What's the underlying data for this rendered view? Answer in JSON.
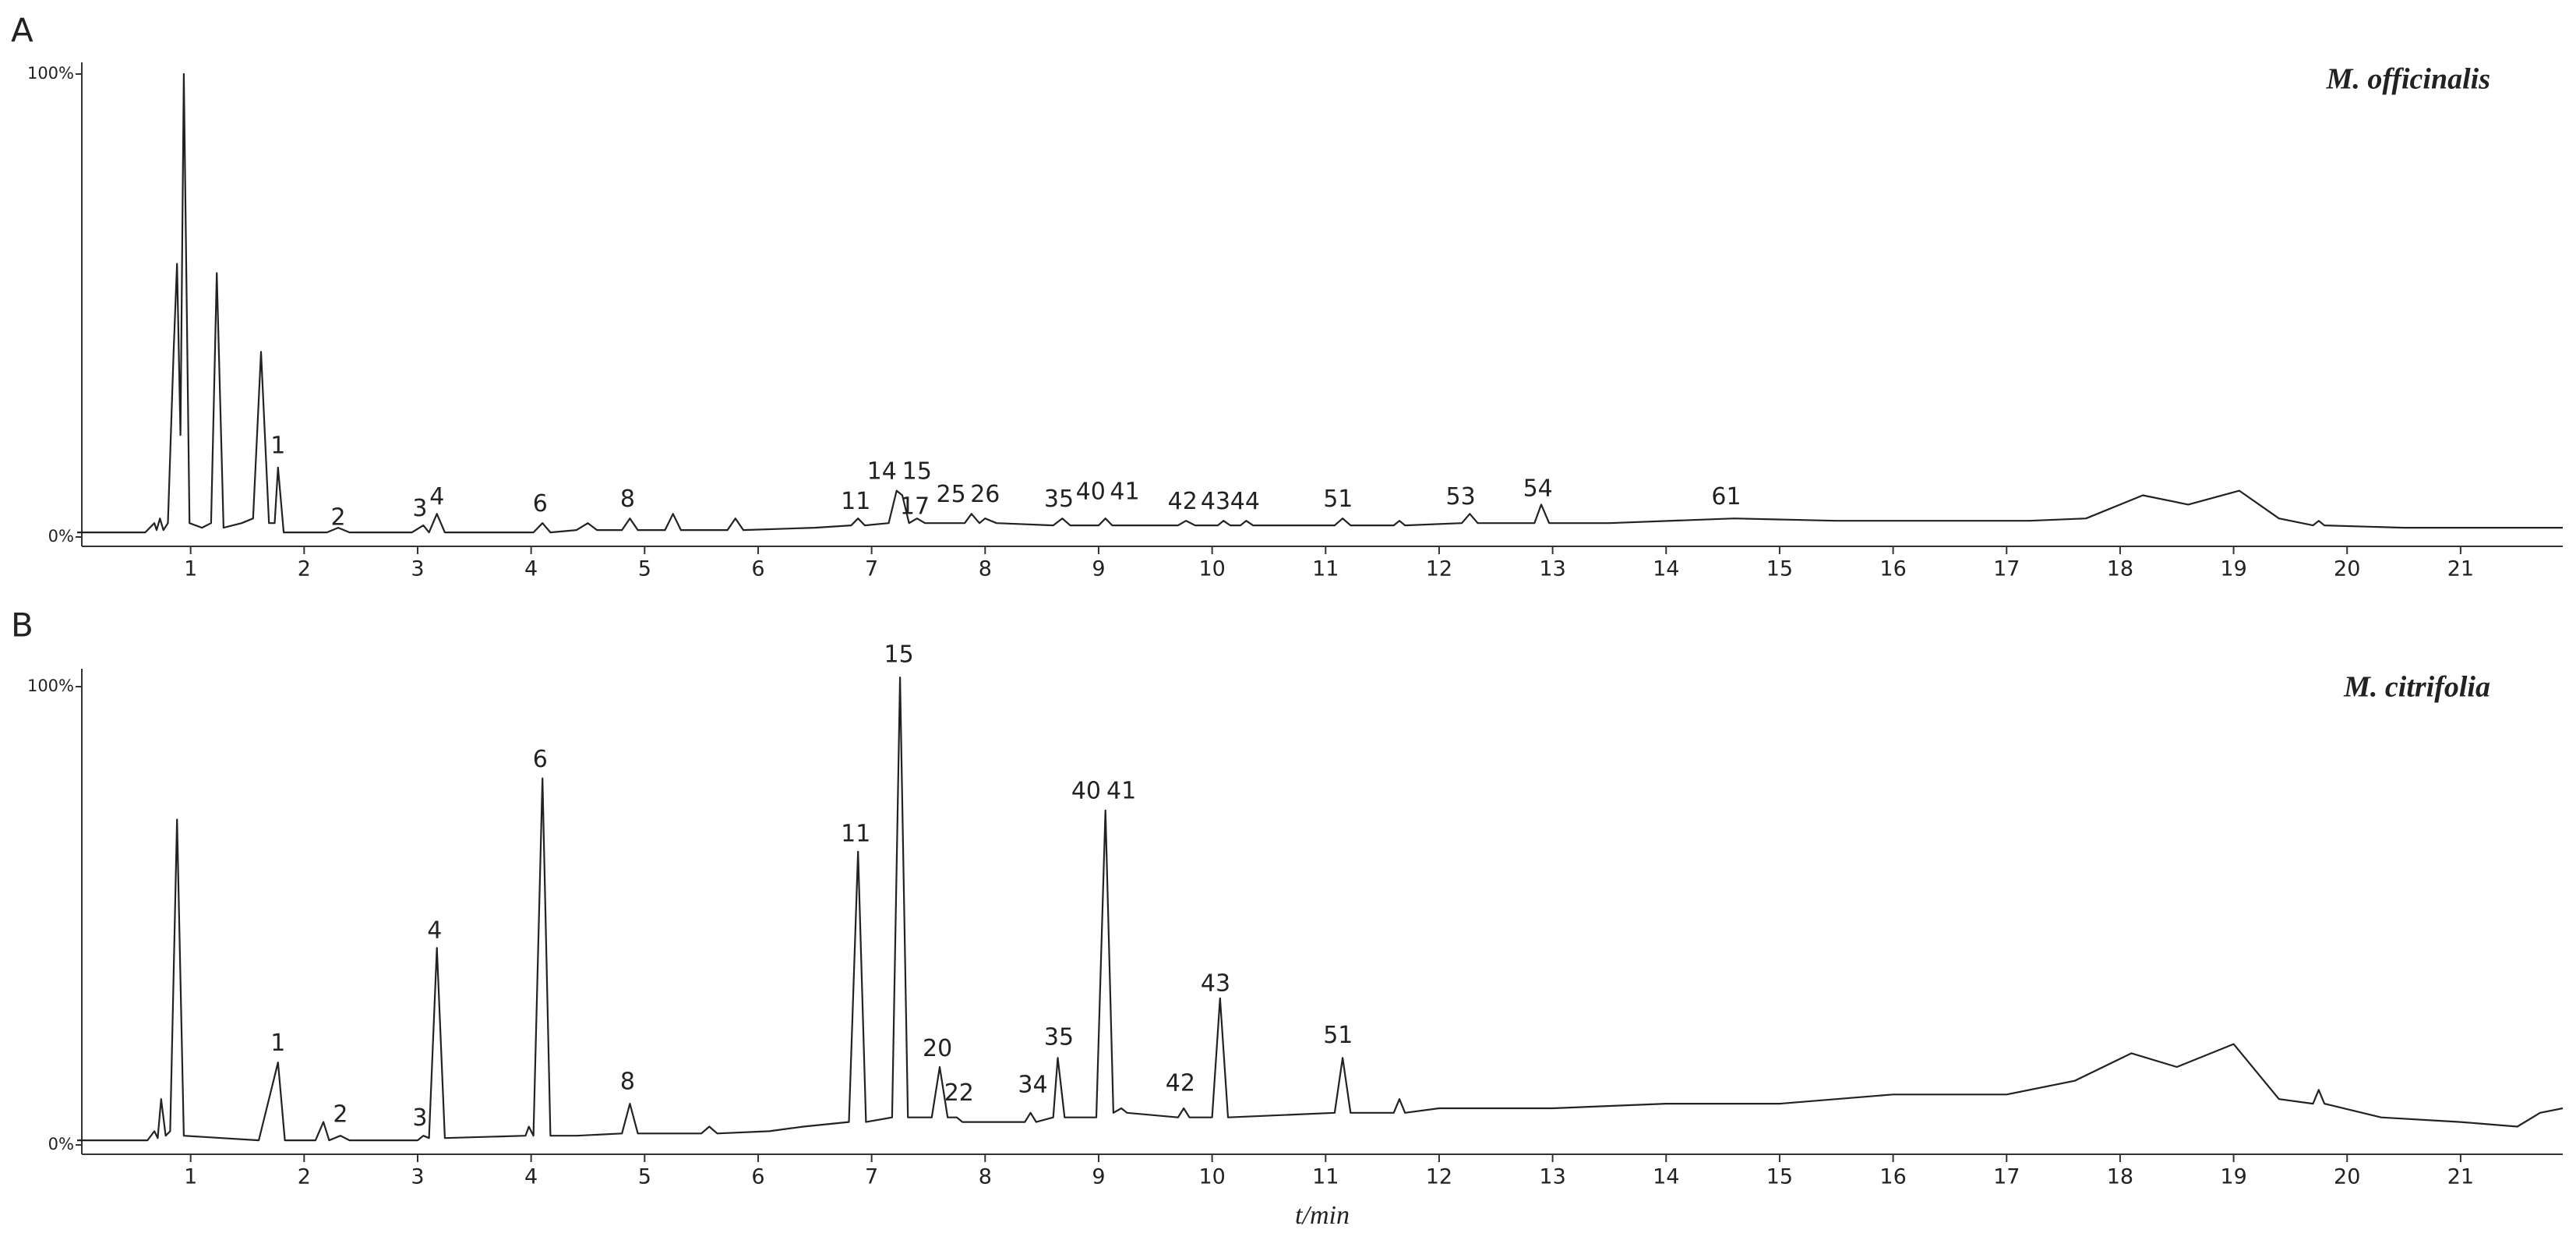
{
  "chart_data": [
    {
      "type": "line",
      "panel": "A",
      "annotation": "M. officinalis",
      "color": "#222222",
      "x": [
        0,
        0.6,
        0.68,
        0.7,
        0.73,
        0.76,
        0.8,
        0.85,
        0.88,
        0.91,
        0.94,
        0.99,
        1.1,
        1.18,
        1.23,
        1.29,
        1.45,
        1.55,
        1.62,
        1.69,
        1.74,
        1.77,
        1.82,
        2.2,
        2.3,
        2.4,
        2.95,
        3.05,
        3.1,
        3.17,
        3.24,
        4.02,
        4.1,
        4.17,
        4.4,
        4.5,
        4.58,
        4.8,
        4.87,
        4.94,
        5.18,
        5.25,
        5.32,
        5.73,
        5.8,
        5.87,
        6.5,
        6.82,
        6.88,
        6.94,
        7.15,
        7.22,
        7.27,
        7.33,
        7.4,
        7.47,
        7.82,
        7.88,
        7.95,
        8.0,
        8.1,
        8.6,
        8.68,
        8.75,
        9.0,
        9.06,
        9.12,
        9.7,
        9.77,
        9.85,
        10.05,
        10.1,
        10.16,
        10.25,
        10.3,
        10.36,
        11.08,
        11.15,
        11.22,
        11.6,
        11.65,
        11.7,
        12.2,
        12.27,
        12.34,
        12.84,
        12.9,
        12.97,
        13.5,
        14.6,
        15.5,
        16.5,
        17.2,
        17.7,
        18.2,
        18.6,
        19.05,
        19.4,
        19.7,
        19.75,
        19.8,
        20.5,
        21.9
      ],
      "values": [
        1,
        1,
        3,
        1.5,
        4,
        1.5,
        3,
        40,
        59,
        22,
        100,
        3,
        2,
        3,
        57,
        2,
        3,
        4,
        40,
        3,
        3,
        15,
        1,
        1,
        2,
        1,
        1,
        2.5,
        1,
        5,
        1,
        1,
        3,
        1,
        1.5,
        3,
        1.5,
        1.5,
        4,
        1.5,
        1.5,
        5,
        1.5,
        1.5,
        4,
        1.5,
        2,
        2.5,
        4,
        2.5,
        3,
        10,
        9,
        3,
        4,
        3,
        3,
        5,
        3,
        4,
        3,
        2.5,
        4,
        2.5,
        2.5,
        4,
        2.5,
        2.5,
        3.5,
        2.5,
        2.5,
        3.5,
        2.5,
        2.5,
        3.5,
        2.5,
        2.5,
        4,
        2.5,
        2.5,
        3.5,
        2.5,
        3,
        5,
        3,
        3,
        7,
        3,
        3,
        4,
        3.5,
        3.5,
        3.5,
        4,
        9,
        7,
        10,
        4,
        2.5,
        3.5,
        2.5,
        2,
        2
      ],
      "xlim": [
        0,
        21.9
      ],
      "ylim": [
        0,
        100
      ],
      "xticks": [
        1,
        2,
        3,
        4,
        5,
        6,
        7,
        8,
        9,
        10,
        11,
        12,
        13,
        14,
        15,
        16,
        17,
        18,
        19,
        20,
        21
      ],
      "yticks": [
        {
          "value": 100,
          "label": "100%"
        },
        {
          "value": 0,
          "label": "0%"
        }
      ],
      "peak_labels": [
        {
          "text": "1",
          "x": 1.77,
          "y": 19.5
        },
        {
          "text": "2",
          "x": 2.3,
          "y": 4
        },
        {
          "text": "3",
          "x": 3.02,
          "y": 6
        },
        {
          "text": "4",
          "x": 3.17,
          "y": 8.5
        },
        {
          "text": "6",
          "x": 4.08,
          "y": 7
        },
        {
          "text": "8",
          "x": 4.85,
          "y": 8
        },
        {
          "text": "11",
          "x": 6.86,
          "y": 7.5
        },
        {
          "text": "14",
          "x": 7.09,
          "y": 14
        },
        {
          "text": "15",
          "x": 7.4,
          "y": 14
        },
        {
          "text": "17",
          "x": 7.38,
          "y": 6.4
        },
        {
          "text": "25",
          "x": 7.7,
          "y": 9
        },
        {
          "text": "26",
          "x": 8.0,
          "y": 9
        },
        {
          "text": "35",
          "x": 8.65,
          "y": 8
        },
        {
          "text": "40",
          "x": 8.93,
          "y": 9.6
        },
        {
          "text": "41",
          "x": 9.23,
          "y": 9.6
        },
        {
          "text": "42",
          "x": 9.74,
          "y": 7.5
        },
        {
          "text": "43",
          "x": 10.03,
          "y": 7.5
        },
        {
          "text": "44",
          "x": 10.29,
          "y": 7.5
        },
        {
          "text": "51",
          "x": 11.11,
          "y": 8
        },
        {
          "text": "53",
          "x": 12.19,
          "y": 8.5
        },
        {
          "text": "54",
          "x": 12.87,
          "y": 10.3
        },
        {
          "text": "61",
          "x": 14.53,
          "y": 8.5
        }
      ]
    },
    {
      "type": "line",
      "panel": "B",
      "annotation": "M. citrifolia",
      "color": "#222222",
      "xlabel": "t/min",
      "x": [
        0,
        0.62,
        0.68,
        0.71,
        0.74,
        0.78,
        0.82,
        0.88,
        0.94,
        1.6,
        1.77,
        1.83,
        2.1,
        2.17,
        2.22,
        2.32,
        2.4,
        3.0,
        3.05,
        3.1,
        3.17,
        3.24,
        3.95,
        3.98,
        4.02,
        4.1,
        4.17,
        4.4,
        4.8,
        4.87,
        4.94,
        5.5,
        5.57,
        5.64,
        6.1,
        6.4,
        6.8,
        6.88,
        6.95,
        7.18,
        7.25,
        7.32,
        7.53,
        7.6,
        7.67,
        7.75,
        7.8,
        8.35,
        8.4,
        8.45,
        8.6,
        8.64,
        8.7,
        8.98,
        9.06,
        9.13,
        9.2,
        9.25,
        9.7,
        9.75,
        9.8,
        10.0,
        10.07,
        10.14,
        11.08,
        11.15,
        11.22,
        11.6,
        11.65,
        11.7,
        12,
        13,
        14,
        15,
        16,
        17,
        17.6,
        18.1,
        18.5,
        19.0,
        19.4,
        19.7,
        19.75,
        19.8,
        20.3,
        21,
        21.5,
        21.7,
        21.9
      ],
      "values": [
        1,
        1,
        3,
        1.5,
        10,
        2,
        3,
        71,
        2,
        1,
        18,
        1,
        1,
        5,
        1,
        2,
        1,
        1,
        2,
        1.5,
        43,
        1.5,
        2,
        4,
        2,
        80,
        2,
        2,
        2.5,
        9,
        2.5,
        2.5,
        4,
        2.5,
        3,
        4,
        5,
        64,
        5,
        6,
        102,
        6,
        6,
        17,
        6,
        6,
        5,
        5,
        7,
        5,
        6,
        19,
        6,
        6,
        73,
        7,
        8,
        7,
        6,
        8,
        6,
        6,
        32,
        6,
        7,
        19,
        7,
        7,
        10,
        7,
        8,
        8,
        9,
        9,
        11,
        11,
        14,
        20,
        17,
        22,
        10,
        9,
        12,
        9,
        6,
        5,
        4,
        7,
        8
      ],
      "xlim": [
        0,
        21.9
      ],
      "ylim": [
        0,
        100
      ],
      "xticks": [
        1,
        2,
        3,
        4,
        5,
        6,
        7,
        8,
        9,
        10,
        11,
        12,
        13,
        14,
        15,
        16,
        17,
        18,
        19,
        20,
        21
      ],
      "yticks": [
        {
          "value": 100,
          "label": "100%"
        },
        {
          "value": 0,
          "label": "0%"
        }
      ],
      "peak_labels": [
        {
          "text": "1",
          "x": 1.77,
          "y": 22
        },
        {
          "text": "2",
          "x": 2.32,
          "y": 6.5
        },
        {
          "text": "3",
          "x": 3.02,
          "y": 5.7
        },
        {
          "text": "4",
          "x": 3.15,
          "y": 46.6
        },
        {
          "text": "6",
          "x": 4.08,
          "y": 83.9
        },
        {
          "text": "8",
          "x": 4.85,
          "y": 13.6
        },
        {
          "text": "11",
          "x": 6.86,
          "y": 67.7
        },
        {
          "text": "15",
          "x": 7.24,
          "y": 106.8
        },
        {
          "text": "20",
          "x": 7.58,
          "y": 20.8
        },
        {
          "text": "22",
          "x": 7.77,
          "y": 11.1
        },
        {
          "text": "34",
          "x": 8.42,
          "y": 12.9
        },
        {
          "text": "35",
          "x": 8.65,
          "y": 23.3
        },
        {
          "text": "40",
          "x": 8.89,
          "y": 77
        },
        {
          "text": "41",
          "x": 9.2,
          "y": 77
        },
        {
          "text": "42",
          "x": 9.72,
          "y": 13.3
        },
        {
          "text": "43",
          "x": 10.03,
          "y": 35
        },
        {
          "text": "51",
          "x": 11.11,
          "y": 23.7
        }
      ]
    }
  ]
}
